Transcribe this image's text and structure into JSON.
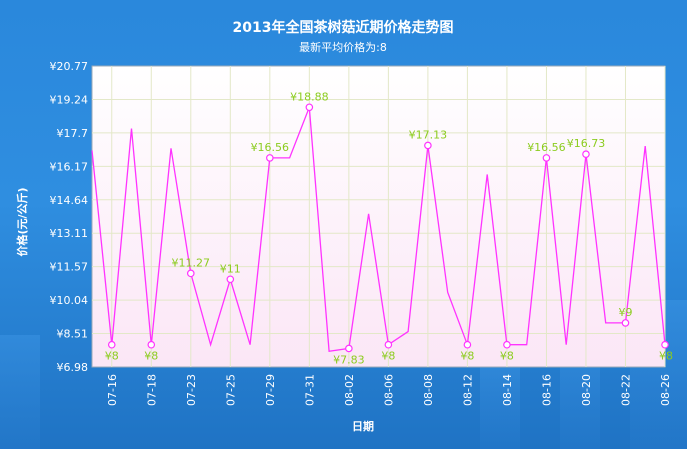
{
  "chart_data": {
    "type": "line",
    "title": "2013年全国茶树菇近期价格走势图",
    "subtitle": "最新平均价格为:8",
    "xlabel": "日期",
    "ylabel": "价格(元/公斤)",
    "ylim": [
      6.98,
      20.77
    ],
    "yticks": [
      "¥6.98",
      "¥8.51",
      "¥10.04",
      "¥11.57",
      "¥13.11",
      "¥14.64",
      "¥16.17",
      "¥17.7",
      "¥19.24",
      "¥20.77"
    ],
    "x_tick_labels": [
      "07-16",
      "07-18",
      "07-23",
      "07-25",
      "07-29",
      "07-31",
      "08-02",
      "08-06",
      "08-08",
      "08-12",
      "08-14",
      "08-16",
      "08-20",
      "08-22",
      "08-26"
    ],
    "grid": true,
    "line_color": "#ff33ff",
    "label_color": "#8ccc1f",
    "series": [
      {
        "values": [
          16.9,
          8,
          17.9,
          8,
          17,
          11.27,
          8,
          11,
          8,
          16.56,
          16.56,
          18.88,
          7.7,
          7.83,
          14,
          8,
          8.6,
          17.13,
          10.4,
          8,
          15.8,
          8,
          8,
          16.56,
          8,
          16.73,
          9,
          9,
          17.1,
          8
        ]
      }
    ],
    "point_labels": [
      {
        "index": 1,
        "text": "¥8"
      },
      {
        "index": 3,
        "text": "¥8"
      },
      {
        "index": 5,
        "text": "¥11.27"
      },
      {
        "index": 7,
        "text": "¥11"
      },
      {
        "index": 9,
        "text": "¥16.56"
      },
      {
        "index": 11,
        "text": "¥18.88"
      },
      {
        "index": 13,
        "text": "¥7.83"
      },
      {
        "index": 15,
        "text": "¥8"
      },
      {
        "index": 17,
        "text": "¥17.13"
      },
      {
        "index": 19,
        "text": "¥8"
      },
      {
        "index": 21,
        "text": "¥8"
      },
      {
        "index": 23,
        "text": "¥16.56"
      },
      {
        "index": 25,
        "text": "¥16.73"
      },
      {
        "index": 27,
        "text": "¥9"
      },
      {
        "index": 29,
        "text": "¥8"
      }
    ]
  }
}
